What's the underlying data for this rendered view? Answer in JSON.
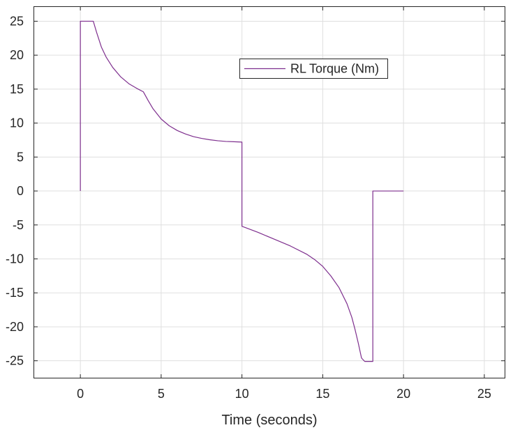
{
  "chart_data": {
    "type": "line",
    "title": "",
    "xlabel": "Time (seconds)",
    "ylabel": "",
    "xlim": [
      -2.9,
      26.3
    ],
    "ylim": [
      -27.6,
      27.2
    ],
    "x_ticks": [
      0,
      5,
      10,
      15,
      20,
      25
    ],
    "y_ticks": [
      25,
      20,
      15,
      10,
      5,
      0,
      -5,
      -10,
      -15,
      -20,
      -25
    ],
    "x_tick_labels": [
      "0",
      "5",
      "10",
      "15",
      "20",
      "25"
    ],
    "y_tick_labels": [
      "25",
      "20",
      "15",
      "10",
      "5",
      "0",
      "-5",
      "-10",
      "-15",
      "-20",
      "-25"
    ],
    "grid": true,
    "legend_position": "top-right-center",
    "series": [
      {
        "name": "RL Torque (Nm)",
        "color": "#7E2F8E",
        "x": [
          0,
          0,
          0.8,
          1.0,
          1.3,
          1.6,
          2.0,
          2.5,
          3.0,
          3.5,
          3.9,
          4.2,
          4.5,
          5.0,
          5.5,
          6.0,
          6.5,
          7.0,
          7.5,
          8.0,
          8.5,
          9.0,
          9.5,
          10.0,
          10.0,
          11.0,
          12.0,
          13.0,
          14.0,
          14.5,
          15.0,
          15.5,
          16.0,
          16.5,
          16.8,
          17.0,
          17.2,
          17.4,
          17.6,
          18.1,
          18.1,
          19.0,
          20.0
        ],
        "y": [
          0,
          25,
          25,
          23.4,
          21.2,
          19.7,
          18.2,
          16.8,
          15.8,
          15.1,
          14.6,
          13.3,
          12.1,
          10.6,
          9.6,
          8.9,
          8.4,
          8.0,
          7.75,
          7.55,
          7.4,
          7.3,
          7.25,
          7.2,
          -5.2,
          -6.1,
          -7.1,
          -8.1,
          -9.3,
          -10.1,
          -11.1,
          -12.5,
          -14.2,
          -16.6,
          -18.6,
          -20.4,
          -22.4,
          -24.6,
          -25.1,
          -25.1,
          0,
          0,
          0
        ]
      }
    ]
  }
}
